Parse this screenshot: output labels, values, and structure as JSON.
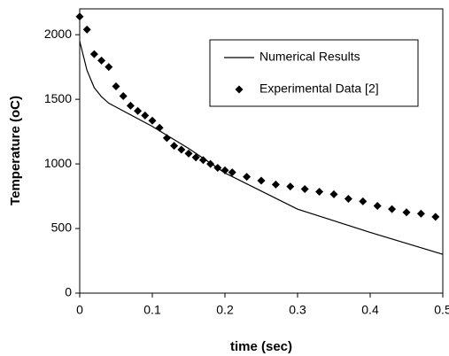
{
  "chart_data": {
    "type": "line",
    "xlabel": "time (sec)",
    "ylabel": "Temperature (oC)",
    "xlim": [
      0,
      0.5
    ],
    "xticks": [
      0,
      0.1,
      0.2,
      0.3,
      0.4,
      0.5
    ],
    "ylim": [
      0,
      2200
    ],
    "yticks": [
      0,
      500,
      1000,
      1500,
      2000
    ],
    "grid": false,
    "legend": "upper right",
    "series": [
      {
        "name": "Numerical Results",
        "type": "line",
        "color": "#000000",
        "x": [
          0,
          0.01,
          0.02,
          0.03,
          0.04,
          0.1,
          0.15,
          0.2,
          0.3,
          0.4,
          0.5
        ],
        "values": [
          1950,
          1725,
          1590,
          1520,
          1470,
          1290,
          1120,
          930,
          650,
          470,
          300
        ]
      },
      {
        "name": "Experimental Data [2]",
        "type": "scatter",
        "color": "#000000",
        "x": [
          0,
          0.01,
          0.02,
          0.03,
          0.04,
          0.05,
          0.06,
          0.07,
          0.08,
          0.09,
          0.1,
          0.11,
          0.12,
          0.13,
          0.14,
          0.15,
          0.16,
          0.17,
          0.18,
          0.19,
          0.2,
          0.21,
          0.23,
          0.25,
          0.27,
          0.29,
          0.31,
          0.33,
          0.35,
          0.37,
          0.39,
          0.41,
          0.43,
          0.45,
          0.47,
          0.49
        ],
        "values": [
          2140,
          2040,
          1850,
          1800,
          1750,
          1600,
          1525,
          1450,
          1410,
          1375,
          1335,
          1280,
          1200,
          1140,
          1110,
          1080,
          1050,
          1030,
          1000,
          970,
          950,
          935,
          900,
          870,
          840,
          825,
          805,
          785,
          765,
          730,
          710,
          675,
          650,
          625,
          615,
          590
        ]
      }
    ]
  }
}
